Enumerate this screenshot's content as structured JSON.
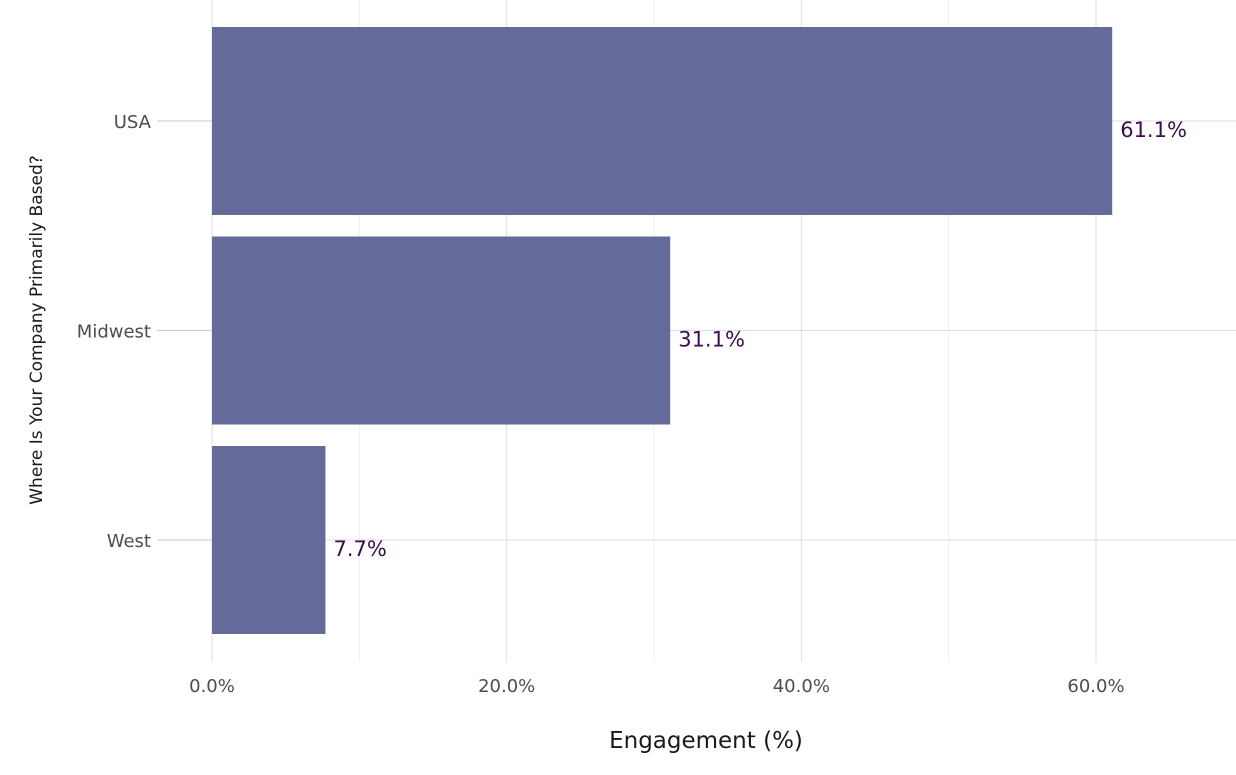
{
  "chart_data": {
    "type": "bar",
    "orientation": "horizontal",
    "categories": [
      "USA",
      "Midwest",
      "West"
    ],
    "values": [
      61.1,
      31.1,
      7.7
    ],
    "data_labels": [
      "61.1%",
      "31.1%",
      "7.7%"
    ],
    "xlabel": "Engagement (%)",
    "ylabel": "Where Is Your Company Primarily Based?",
    "xlim": [
      0,
      70
    ],
    "x_ticks": [
      0,
      20,
      40,
      60
    ],
    "x_tick_labels": [
      "0.0%",
      "20.0%",
      "40.0%",
      "60.0%"
    ],
    "grid": true,
    "legend": "none",
    "colors": {
      "bar": "#646a99",
      "data_label": "#3b0f4f",
      "grid_major": "#dedede",
      "grid_minor": "#efefef"
    }
  }
}
